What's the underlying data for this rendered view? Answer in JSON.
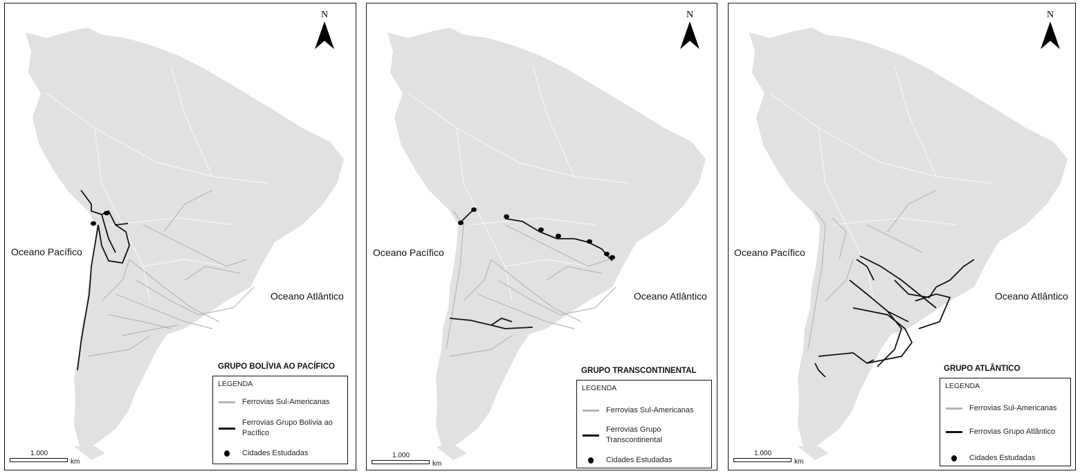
{
  "panels": [
    {
      "title": "GRUPO BOLÍVIA AO PACÍFICO",
      "ocean_pacific": "Oceano Pacífico",
      "ocean_atlantic": "Oceano Atlântico",
      "north": "N",
      "legend": {
        "title": "LEGENDA",
        "items": [
          {
            "label": "Ferrovias Sul-Americanas",
            "color": "#b5b5b5"
          },
          {
            "label": "Ferrovias Grupo Bolívia ao Pacífico",
            "color": "#111111"
          },
          {
            "label": "Cidades Estudadas",
            "color": "#000000"
          }
        ]
      },
      "scale": {
        "value": "1.000",
        "unit": "km"
      }
    },
    {
      "title": "GRUPO TRANSCONTINENTAL",
      "ocean_pacific": "Oceano Pacífico",
      "ocean_atlantic": "Oceano Atlântico",
      "north": "N",
      "legend": {
        "title": "LEGENDA",
        "items": [
          {
            "label": "Ferrovias Sul-Americanas",
            "color": "#b5b5b5"
          },
          {
            "label": "Ferrovias Grupo Transcontinental",
            "color": "#111111"
          },
          {
            "label": "Cidades Estudadas",
            "color": "#000000"
          }
        ]
      },
      "scale": {
        "value": "1.000",
        "unit": "km"
      }
    },
    {
      "title": "GRUPO ATLÂNTICO",
      "ocean_pacific": "Oceano Pacífico",
      "ocean_atlantic": "Oceano Atlântico",
      "north": "N",
      "legend": {
        "title": "LEGENDA",
        "items": [
          {
            "label": "Ferrovias Sul-Americanas",
            "color": "#b5b5b5"
          },
          {
            "label": "Ferrovias Grupo Atlântico",
            "color": "#111111"
          },
          {
            "label": "Cidades Estudadas",
            "color": "#000000"
          }
        ]
      },
      "scale": {
        "value": "1.000",
        "unit": "km"
      }
    }
  ],
  "colors": {
    "land": "#e1e1e1",
    "borders": "#f6f6f6",
    "rail_all": "#b5b5b5",
    "rail_group": "#111111"
  }
}
